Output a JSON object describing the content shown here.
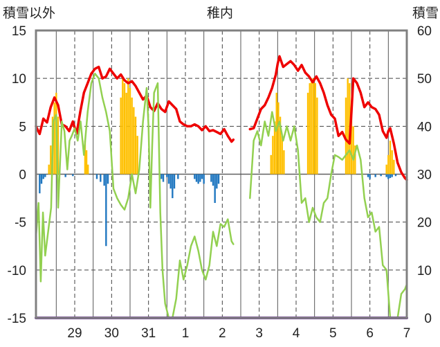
{
  "labels": {
    "left_axis": "積雪以外",
    "title": "稚内",
    "right_axis": "積雪"
  },
  "chart_data": {
    "type": "line",
    "title": "稚内",
    "ylabel_left": "積雪以外",
    "ylabel_right": "積雪",
    "y_left_range": [
      -15,
      15
    ],
    "y_left_ticks": [
      "15",
      "10",
      "5",
      "0",
      "-5",
      "-10",
      "-15"
    ],
    "y_right_range": [
      0,
      60
    ],
    "y_right_ticks": [
      "60",
      "50",
      "40",
      "30",
      "20",
      "10",
      "0"
    ],
    "x_range": [
      28.45,
      7.5
    ],
    "x_tick_labels": [
      "29",
      "30",
      "31",
      "1",
      "2",
      "3",
      "4",
      "5",
      "6",
      "7"
    ],
    "grid": true,
    "colors": {
      "temperature": "#ee0000",
      "wind_or_other": "#92d050",
      "snowfall": "#ffc000",
      "precipitation": "#1f77c0",
      "snow_depth": "#7030a0",
      "frame": "#808080",
      "grid": "#404040"
    },
    "series": [
      {
        "key": "red",
        "axis": "left",
        "points": [
          [
            28.45,
            5.0
          ],
          [
            28.55,
            4.2
          ],
          [
            28.65,
            5.8
          ],
          [
            28.75,
            5.4
          ],
          [
            28.85,
            7.0
          ],
          [
            28.95,
            8.0
          ],
          [
            29.05,
            7.2
          ],
          [
            29.15,
            5.2
          ],
          [
            29.25,
            5.0
          ],
          [
            29.35,
            4.5
          ],
          [
            29.45,
            5.5
          ],
          [
            29.55,
            4.2
          ],
          [
            29.65,
            6.5
          ],
          [
            29.75,
            8.5
          ],
          [
            29.85,
            9.5
          ],
          [
            29.95,
            10.5
          ],
          [
            30.05,
            11.0
          ],
          [
            30.15,
            11.2
          ],
          [
            30.25,
            10.0
          ],
          [
            30.35,
            10.2
          ],
          [
            30.45,
            11.0
          ],
          [
            30.55,
            10.5
          ],
          [
            30.65,
            10.0
          ],
          [
            30.75,
            10.4
          ],
          [
            30.85,
            9.8
          ],
          [
            30.95,
            9.5
          ],
          [
            31.05,
            9.7
          ],
          [
            31.15,
            9.2
          ],
          [
            31.25,
            8.5
          ],
          [
            31.35,
            7.8
          ],
          [
            31.45,
            8.2
          ],
          [
            31.55,
            7.0
          ],
          [
            31.65,
            6.6
          ],
          [
            31.75,
            7.4
          ],
          [
            31.85,
            6.8
          ],
          [
            31.95,
            6.5
          ],
          [
            1.05,
            7.6
          ],
          [
            1.15,
            7.2
          ],
          [
            1.25,
            6.8
          ],
          [
            1.35,
            5.5
          ],
          [
            1.45,
            5.2
          ],
          [
            1.55,
            5.0
          ],
          [
            1.65,
            5.0
          ],
          [
            1.75,
            5.2
          ],
          [
            1.85,
            5.0
          ],
          [
            1.95,
            4.6
          ],
          [
            2.05,
            5.0
          ],
          [
            2.15,
            4.5
          ],
          [
            2.25,
            4.6
          ],
          [
            2.35,
            4.4
          ],
          [
            2.45,
            4.2
          ],
          [
            2.55,
            4.7
          ],
          [
            2.65,
            4.0
          ],
          [
            2.75,
            3.4
          ],
          [
            2.8,
            3.6
          ],
          null,
          [
            3.25,
            4.7
          ],
          [
            3.35,
            4.8
          ],
          [
            3.45,
            5.8
          ],
          [
            3.55,
            6.8
          ],
          [
            3.65,
            7.2
          ],
          [
            3.75,
            8.0
          ],
          [
            3.85,
            9.0
          ],
          [
            3.95,
            10.4
          ],
          [
            4.0,
            11.5
          ],
          [
            4.05,
            12.3
          ],
          [
            4.15,
            11.2
          ],
          [
            4.25,
            11.5
          ],
          [
            4.35,
            11.8
          ],
          [
            4.45,
            11.4
          ],
          [
            4.55,
            10.8
          ],
          [
            4.65,
            11.4
          ],
          [
            4.75,
            10.6
          ],
          [
            4.85,
            10.2
          ],
          [
            4.95,
            9.6
          ],
          [
            5.05,
            10.2
          ],
          [
            5.15,
            9.5
          ],
          [
            5.25,
            8.5
          ],
          [
            5.35,
            7.2
          ],
          [
            5.45,
            6.2
          ],
          [
            5.55,
            5.8
          ],
          [
            5.65,
            4.0
          ],
          [
            5.75,
            4.4
          ],
          [
            5.85,
            3.6
          ],
          [
            5.95,
            3.2
          ],
          [
            6.0,
            6.5
          ],
          [
            6.05,
            10.0
          ],
          [
            6.15,
            9.5
          ],
          [
            6.25,
            8.5
          ],
          [
            6.35,
            7.0
          ],
          [
            6.45,
            7.5
          ],
          [
            6.55,
            7.0
          ],
          [
            6.65,
            6.8
          ],
          [
            6.75,
            6.2
          ],
          [
            6.85,
            4.5
          ],
          [
            6.95,
            3.8
          ],
          [
            7.0,
            4.5
          ],
          [
            7.05,
            4.8
          ],
          [
            7.15,
            3.2
          ],
          [
            7.25,
            1.2
          ],
          [
            7.35,
            0.2
          ],
          [
            7.45,
            -0.4
          ],
          [
            7.5,
            -0.6
          ]
        ]
      },
      {
        "key": "green",
        "axis": "left",
        "points": [
          [
            28.45,
            -6.5
          ],
          [
            28.52,
            -3.0
          ],
          [
            28.58,
            -11.2
          ],
          [
            28.64,
            -4.0
          ],
          [
            28.7,
            -8.5
          ],
          [
            28.78,
            -6.0
          ],
          [
            28.86,
            -3.5
          ],
          [
            28.92,
            5.5
          ],
          [
            29.0,
            6.2
          ],
          [
            29.05,
            -3.5
          ],
          [
            29.1,
            1.0
          ],
          [
            29.15,
            5.5
          ],
          [
            29.22,
            4.5
          ],
          [
            29.3,
            0.5
          ],
          [
            29.36,
            3.5
          ],
          [
            29.42,
            4.0
          ],
          [
            29.5,
            4.8
          ],
          [
            29.58,
            3.5
          ],
          [
            29.66,
            5.5
          ],
          [
            29.75,
            2.0
          ],
          [
            29.85,
            6.5
          ],
          [
            29.95,
            9.5
          ],
          [
            30.05,
            10.5
          ],
          [
            30.15,
            10.0
          ],
          [
            30.25,
            8.0
          ],
          [
            30.35,
            6.5
          ],
          [
            30.45,
            4.5
          ],
          [
            30.55,
            -1.5
          ],
          [
            30.65,
            -2.5
          ],
          [
            30.75,
            -3.2
          ],
          [
            30.85,
            -3.7
          ],
          [
            30.95,
            -2.5
          ],
          [
            31.05,
            0.0
          ],
          [
            31.15,
            -2.0
          ],
          [
            31.25,
            0.5
          ],
          [
            31.35,
            5.5
          ],
          [
            31.45,
            9.0
          ],
          [
            31.5,
            5.0
          ],
          [
            31.55,
            -3.5
          ],
          [
            31.6,
            3.0
          ],
          [
            31.65,
            8.5
          ],
          [
            31.75,
            9.5
          ],
          [
            31.82,
            -4.0
          ],
          [
            31.88,
            -10.0
          ],
          [
            31.95,
            -13.5
          ],
          [
            1.05,
            -15.0
          ],
          [
            1.15,
            -15.0
          ],
          [
            1.25,
            -13.0
          ],
          [
            1.35,
            -9.0
          ],
          [
            1.45,
            -11.0
          ],
          [
            1.55,
            -9.5
          ],
          [
            1.65,
            -7.5
          ],
          [
            1.75,
            -6.5
          ],
          [
            1.85,
            -8.0
          ],
          [
            1.95,
            -10.0
          ],
          [
            2.05,
            -11.0
          ],
          [
            2.15,
            -9.5
          ],
          [
            2.25,
            -6.0
          ],
          [
            2.35,
            -7.5
          ],
          [
            2.45,
            -5.2
          ],
          [
            2.55,
            -5.5
          ],
          [
            2.65,
            -4.7
          ],
          [
            2.75,
            -7.0
          ],
          [
            2.8,
            -7.3
          ],
          null,
          [
            3.25,
            -2.5
          ],
          [
            3.35,
            3.5
          ],
          [
            3.45,
            4.5
          ],
          [
            3.55,
            3.0
          ],
          [
            3.65,
            5.5
          ],
          [
            3.75,
            4.0
          ],
          [
            3.85,
            6.5
          ],
          [
            3.95,
            4.5
          ],
          [
            4.05,
            5.5
          ],
          [
            4.15,
            3.5
          ],
          [
            4.25,
            5.0
          ],
          [
            4.35,
            3.5
          ],
          [
            4.45,
            5.0
          ],
          [
            4.55,
            2.5
          ],
          [
            4.65,
            -3.0
          ],
          [
            4.75,
            -2.5
          ],
          [
            4.85,
            -5.0
          ],
          [
            4.95,
            -3.5
          ],
          [
            5.05,
            -4.5
          ],
          [
            5.15,
            -5.0
          ],
          [
            5.25,
            -3.0
          ],
          [
            5.35,
            -2.5
          ],
          [
            5.45,
            0.0
          ],
          [
            5.55,
            2.0
          ],
          [
            5.65,
            1.8
          ],
          [
            5.75,
            1.5
          ],
          [
            5.85,
            2.0
          ],
          [
            5.95,
            2.5
          ],
          [
            6.05,
            1.5
          ],
          [
            6.15,
            3.0
          ],
          [
            6.25,
            1.5
          ],
          [
            6.35,
            -2.5
          ],
          [
            6.45,
            -4.5
          ],
          [
            6.55,
            -4.0
          ],
          [
            6.65,
            -6.0
          ],
          [
            6.75,
            -5.5
          ],
          [
            6.85,
            -9.5
          ],
          [
            6.95,
            -10.0
          ],
          [
            7.05,
            -15.0
          ],
          [
            7.15,
            -15.0
          ],
          [
            7.25,
            -15.0
          ],
          [
            7.35,
            -12.5
          ],
          [
            7.45,
            -12.0
          ],
          [
            7.5,
            -11.5
          ]
        ]
      },
      {
        "key": "orange",
        "axis": "left",
        "type": "bar",
        "bars": [
          [
            28.8,
            1.0
          ],
          [
            28.85,
            3.0
          ],
          [
            28.9,
            6.0
          ],
          [
            28.95,
            7.5
          ],
          [
            29.0,
            8.5
          ],
          [
            29.05,
            6.0
          ],
          [
            29.78,
            3.5
          ],
          [
            29.82,
            2.5
          ],
          [
            29.86,
            1.0
          ],
          [
            30.75,
            8.0
          ],
          [
            30.8,
            10.0
          ],
          [
            30.85,
            9.5
          ],
          [
            30.9,
            8.5
          ],
          [
            30.95,
            10.0
          ],
          [
            31.0,
            9.0
          ],
          [
            31.05,
            8.0
          ],
          [
            31.1,
            7.0
          ],
          [
            31.15,
            6.0
          ],
          [
            31.2,
            4.0
          ],
          [
            3.82,
            2.0
          ],
          [
            3.87,
            4.0
          ],
          [
            3.92,
            5.5
          ],
          [
            3.97,
            8.5
          ],
          [
            4.02,
            7.5
          ],
          [
            4.07,
            6.0
          ],
          [
            4.12,
            4.0
          ],
          [
            4.17,
            2.5
          ],
          [
            4.82,
            8.5
          ],
          [
            4.87,
            9.5
          ],
          [
            4.92,
            10.0
          ],
          [
            4.97,
            10.0
          ],
          [
            5.02,
            9.5
          ],
          [
            5.07,
            8.0
          ],
          [
            5.85,
            8.0
          ],
          [
            5.9,
            10.0
          ],
          [
            5.95,
            9.5
          ],
          [
            6.0,
            7.0
          ],
          [
            6.05,
            5.0
          ],
          [
            6.1,
            3.0
          ],
          [
            6.95,
            1.0
          ],
          [
            7.0,
            2.0
          ],
          [
            7.05,
            3.5
          ],
          [
            7.1,
            2.5
          ],
          [
            7.15,
            1.5
          ]
        ]
      },
      {
        "key": "blue",
        "axis": "left",
        "type": "bar",
        "bars": [
          [
            28.55,
            -2.0
          ],
          [
            28.6,
            -1.0
          ],
          [
            28.65,
            -0.5
          ],
          [
            28.7,
            -0.3
          ],
          [
            29.25,
            -0.3
          ],
          [
            29.45,
            -0.2
          ],
          [
            30.1,
            -0.5
          ],
          [
            30.2,
            -0.8
          ],
          [
            30.3,
            -1.2
          ],
          [
            30.35,
            -7.5
          ],
          [
            30.4,
            -1.0
          ],
          [
            31.85,
            -0.5
          ],
          [
            31.9,
            -0.8
          ],
          [
            1.0,
            -0.3
          ],
          [
            1.05,
            -1.0
          ],
          [
            1.1,
            -1.5
          ],
          [
            1.15,
            -2.5
          ],
          [
            1.2,
            -1.5
          ],
          [
            1.3,
            -0.5
          ],
          [
            1.75,
            -0.5
          ],
          [
            1.8,
            -0.8
          ],
          [
            1.85,
            -1.0
          ],
          [
            1.9,
            -0.8
          ],
          [
            1.95,
            -0.5
          ],
          [
            2.0,
            -1.0
          ],
          [
            2.2,
            -0.8
          ],
          [
            2.25,
            -1.2
          ],
          [
            2.3,
            -3.0
          ],
          [
            2.35,
            -1.5
          ],
          [
            2.4,
            -1.0
          ],
          [
            6.45,
            -0.3
          ],
          [
            6.5,
            -0.5
          ],
          [
            6.65,
            -0.3
          ],
          [
            6.8,
            -0.2
          ],
          [
            6.95,
            -0.3
          ],
          [
            7.0,
            -0.5
          ],
          [
            7.05,
            -0.4
          ],
          [
            7.1,
            -0.3
          ],
          [
            7.2,
            -0.2
          ]
        ]
      },
      {
        "key": "purple",
        "axis": "right",
        "points": [
          [
            28.45,
            0.0
          ],
          [
            7.5,
            0.0
          ]
        ]
      }
    ]
  }
}
